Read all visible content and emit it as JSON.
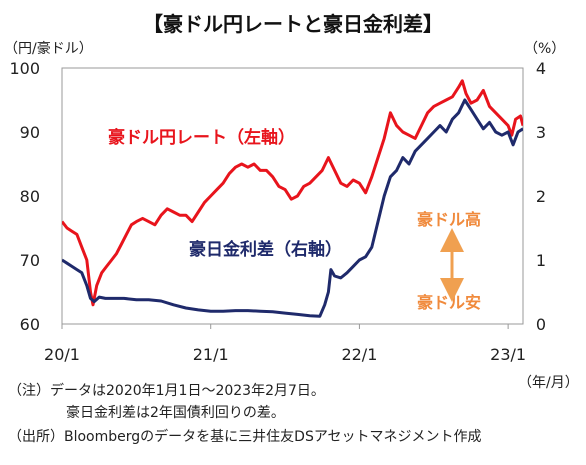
{
  "title": "【豪ドル円レートと豪日金利差】",
  "left_unit": "（円/豪ドル）",
  "right_unit": "（%）",
  "x_unit": "（年/月）",
  "notes": [
    "（注）データは2020年1月1日～2023年2月7日。",
    "豪日金利差は2年国債利回りの差。",
    "（出所）Bloombergのデータを基に三井住友DSアセットマネジメント作成"
  ],
  "colors": {
    "aud_jpy": "#e8141c",
    "spread": "#1f2a6b",
    "annotation": "#f08a3c",
    "arrow": "#f0a050"
  },
  "chart_data": {
    "type": "line",
    "title": "【豪ドル円レートと豪日金利差】",
    "xlabel": "（年/月）",
    "ylabel_left": "（円/豪ドル）",
    "ylabel_right": "（%）",
    "ylim_left": [
      60,
      100
    ],
    "ylim_right": [
      0,
      4
    ],
    "yticks_left": [
      "60",
      "70",
      "80",
      "90",
      "100"
    ],
    "yticks_right": [
      "0",
      "1",
      "2",
      "3",
      "4"
    ],
    "xticks": [
      {
        "label": "20/1",
        "t": 0
      },
      {
        "label": "21/1",
        "t": 12
      },
      {
        "label": "22/1",
        "t": 24
      },
      {
        "label": "23/1",
        "t": 36
      }
    ],
    "x_range": [
      0,
      37.2
    ],
    "grid": false,
    "series": [
      {
        "name": "豪ドル円レート（左軸）",
        "axis": "left",
        "points": [
          [
            0,
            76
          ],
          [
            0.4,
            75
          ],
          [
            0.8,
            74.5
          ],
          [
            1.2,
            74
          ],
          [
            1.6,
            72
          ],
          [
            2.0,
            70
          ],
          [
            2.3,
            65
          ],
          [
            2.5,
            63
          ],
          [
            2.8,
            66
          ],
          [
            3.2,
            68
          ],
          [
            3.6,
            69
          ],
          [
            4.0,
            70
          ],
          [
            4.4,
            71
          ],
          [
            4.8,
            72.5
          ],
          [
            5.2,
            74
          ],
          [
            5.6,
            75.5
          ],
          [
            6.0,
            76
          ],
          [
            6.5,
            76.5
          ],
          [
            7.0,
            76
          ],
          [
            7.5,
            75.5
          ],
          [
            8.0,
            77
          ],
          [
            8.5,
            78
          ],
          [
            9.0,
            77.5
          ],
          [
            9.5,
            77
          ],
          [
            10.0,
            77
          ],
          [
            10.5,
            76
          ],
          [
            11.0,
            77.5
          ],
          [
            11.5,
            79
          ],
          [
            12.0,
            80
          ],
          [
            12.5,
            81
          ],
          [
            13.0,
            82
          ],
          [
            13.5,
            83.5
          ],
          [
            14.0,
            84.5
          ],
          [
            14.5,
            85
          ],
          [
            15.0,
            84.5
          ],
          [
            15.5,
            85
          ],
          [
            16.0,
            84
          ],
          [
            16.5,
            84
          ],
          [
            17.0,
            83
          ],
          [
            17.5,
            81.5
          ],
          [
            18.0,
            81
          ],
          [
            18.5,
            79.5
          ],
          [
            19.0,
            80
          ],
          [
            19.5,
            81.5
          ],
          [
            20.0,
            82
          ],
          [
            20.5,
            83
          ],
          [
            21.0,
            84
          ],
          [
            21.5,
            86
          ],
          [
            22.0,
            84
          ],
          [
            22.5,
            82
          ],
          [
            23.0,
            81.5
          ],
          [
            23.5,
            82.5
          ],
          [
            24.0,
            82
          ],
          [
            24.5,
            80.5
          ],
          [
            25.0,
            83
          ],
          [
            25.5,
            86
          ],
          [
            26.0,
            89
          ],
          [
            26.5,
            93
          ],
          [
            27.0,
            91
          ],
          [
            27.5,
            90
          ],
          [
            28.0,
            89.5
          ],
          [
            28.5,
            89
          ],
          [
            29.0,
            91
          ],
          [
            29.5,
            93
          ],
          [
            30.0,
            94
          ],
          [
            30.5,
            94.5
          ],
          [
            31.0,
            95
          ],
          [
            31.5,
            95.5
          ],
          [
            32.0,
            97
          ],
          [
            32.3,
            98
          ],
          [
            32.6,
            96
          ],
          [
            33.0,
            94.5
          ],
          [
            33.5,
            95
          ],
          [
            34.0,
            96.5
          ],
          [
            34.5,
            94
          ],
          [
            35.0,
            93
          ],
          [
            35.5,
            92
          ],
          [
            36.0,
            91
          ],
          [
            36.3,
            89.5
          ],
          [
            36.6,
            92
          ],
          [
            37.0,
            92.5
          ],
          [
            37.2,
            91
          ]
        ]
      },
      {
        "name": "豪日金利差（右軸）",
        "axis": "right",
        "points": [
          [
            0,
            1.0
          ],
          [
            0.4,
            0.95
          ],
          [
            0.8,
            0.9
          ],
          [
            1.2,
            0.85
          ],
          [
            1.6,
            0.8
          ],
          [
            2.0,
            0.6
          ],
          [
            2.3,
            0.4
          ],
          [
            2.6,
            0.35
          ],
          [
            3.0,
            0.42
          ],
          [
            3.5,
            0.4
          ],
          [
            4.0,
            0.4
          ],
          [
            5.0,
            0.4
          ],
          [
            6.0,
            0.38
          ],
          [
            7.0,
            0.38
          ],
          [
            8.0,
            0.36
          ],
          [
            9.0,
            0.3
          ],
          [
            10.0,
            0.25
          ],
          [
            11.0,
            0.22
          ],
          [
            12.0,
            0.2
          ],
          [
            13.0,
            0.2
          ],
          [
            14.0,
            0.21
          ],
          [
            15.0,
            0.21
          ],
          [
            16.0,
            0.2
          ],
          [
            17.0,
            0.19
          ],
          [
            18.0,
            0.17
          ],
          [
            19.0,
            0.15
          ],
          [
            20.0,
            0.13
          ],
          [
            20.8,
            0.12
          ],
          [
            21.2,
            0.3
          ],
          [
            21.5,
            0.5
          ],
          [
            21.7,
            0.85
          ],
          [
            22.0,
            0.75
          ],
          [
            22.5,
            0.72
          ],
          [
            23.0,
            0.8
          ],
          [
            23.5,
            0.9
          ],
          [
            24.0,
            1.0
          ],
          [
            24.5,
            1.05
          ],
          [
            25.0,
            1.2
          ],
          [
            25.5,
            1.6
          ],
          [
            26.0,
            2.0
          ],
          [
            26.5,
            2.3
          ],
          [
            27.0,
            2.4
          ],
          [
            27.5,
            2.6
          ],
          [
            28.0,
            2.5
          ],
          [
            28.5,
            2.7
          ],
          [
            29.0,
            2.8
          ],
          [
            29.5,
            2.9
          ],
          [
            30.0,
            3.0
          ],
          [
            30.5,
            3.1
          ],
          [
            31.0,
            3.0
          ],
          [
            31.5,
            3.2
          ],
          [
            32.0,
            3.3
          ],
          [
            32.5,
            3.5
          ],
          [
            33.0,
            3.35
          ],
          [
            33.5,
            3.2
          ],
          [
            34.0,
            3.05
          ],
          [
            34.5,
            3.15
          ],
          [
            35.0,
            3.0
          ],
          [
            35.5,
            2.95
          ],
          [
            36.0,
            3.0
          ],
          [
            36.4,
            2.8
          ],
          [
            36.8,
            3.0
          ],
          [
            37.2,
            3.05
          ]
        ]
      }
    ],
    "annotations": [
      {
        "text": "豪ドル円レート（左軸）",
        "color": "red"
      },
      {
        "text": "豪日金利差（右軸）",
        "color": "navy"
      },
      {
        "text": "豪ドル高",
        "color": "orange"
      },
      {
        "text": "豪ドル安",
        "color": "orange"
      }
    ]
  }
}
